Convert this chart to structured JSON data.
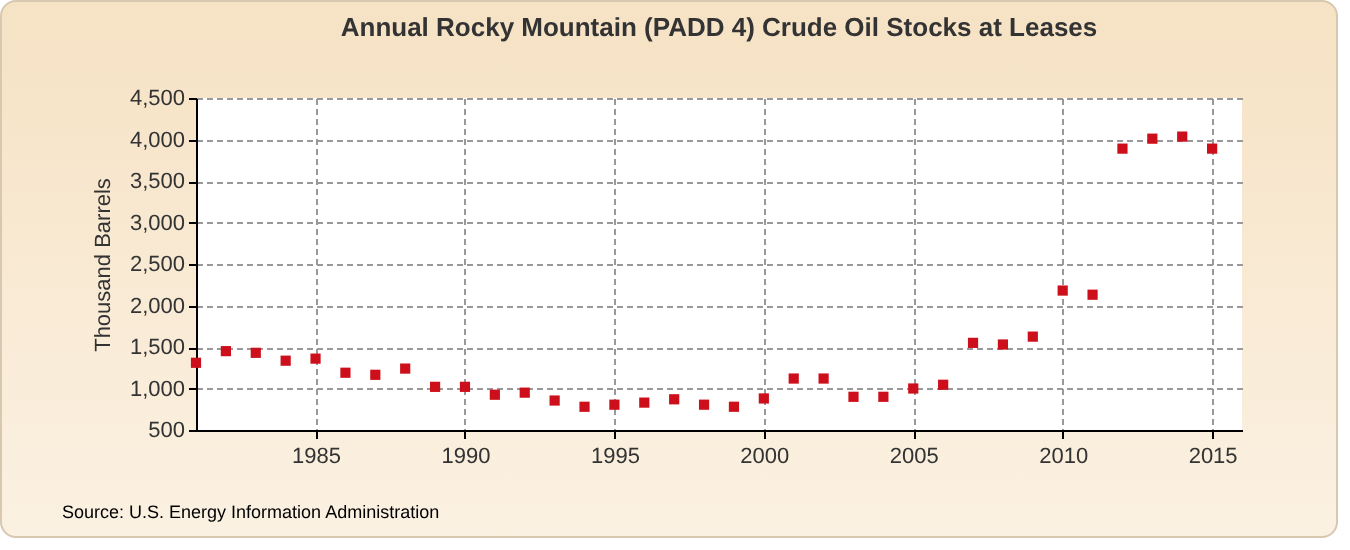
{
  "chart_data": {
    "type": "scatter",
    "title": "Annual Rocky Mountain (PADD 4) Crude Oil Stocks at Leases",
    "ylabel": "Thousand Barrels",
    "annotations": [
      "Source: U.S. Energy Information Administration"
    ],
    "x": [
      1981,
      1982,
      1983,
      1984,
      1985,
      1986,
      1987,
      1988,
      1989,
      1990,
      1991,
      1992,
      1993,
      1994,
      1995,
      1996,
      1997,
      1998,
      1999,
      2000,
      2001,
      2002,
      2003,
      2004,
      2005,
      2006,
      2007,
      2008,
      2009,
      2010,
      2011,
      2012,
      2013,
      2014,
      2015
    ],
    "series": [
      {
        "color": "#cc0f1a",
        "values": [
          1310,
          1450,
          1430,
          1335,
          1360,
          1190,
          1165,
          1240,
          1020,
          1020,
          925,
          950,
          855,
          780,
          805,
          830,
          870,
          805,
          780,
          880,
          1120,
          1120,
          900,
          900,
          1000,
          1045,
          1550,
          1530,
          1625,
          2180,
          2130,
          3890,
          4010,
          4035,
          3890
        ]
      }
    ],
    "xlim": [
      1981,
      2016
    ],
    "xticks": [
      1985,
      1990,
      1995,
      2000,
      2005,
      2010,
      2015
    ],
    "ylim": [
      500,
      4500
    ],
    "yticks": [
      {
        "value": 500,
        "label": "500"
      },
      {
        "value": 1000,
        "label": "1,000"
      },
      {
        "value": 1500,
        "label": "1,500"
      },
      {
        "value": 2000,
        "label": "2,000"
      },
      {
        "value": 2500,
        "label": "2,500"
      },
      {
        "value": 3000,
        "label": "3,000"
      },
      {
        "value": 3500,
        "label": "3,500"
      },
      {
        "value": 4000,
        "label": "4,000"
      },
      {
        "value": 4500,
        "label": "4,500"
      }
    ],
    "grid": true,
    "marker": "square"
  }
}
